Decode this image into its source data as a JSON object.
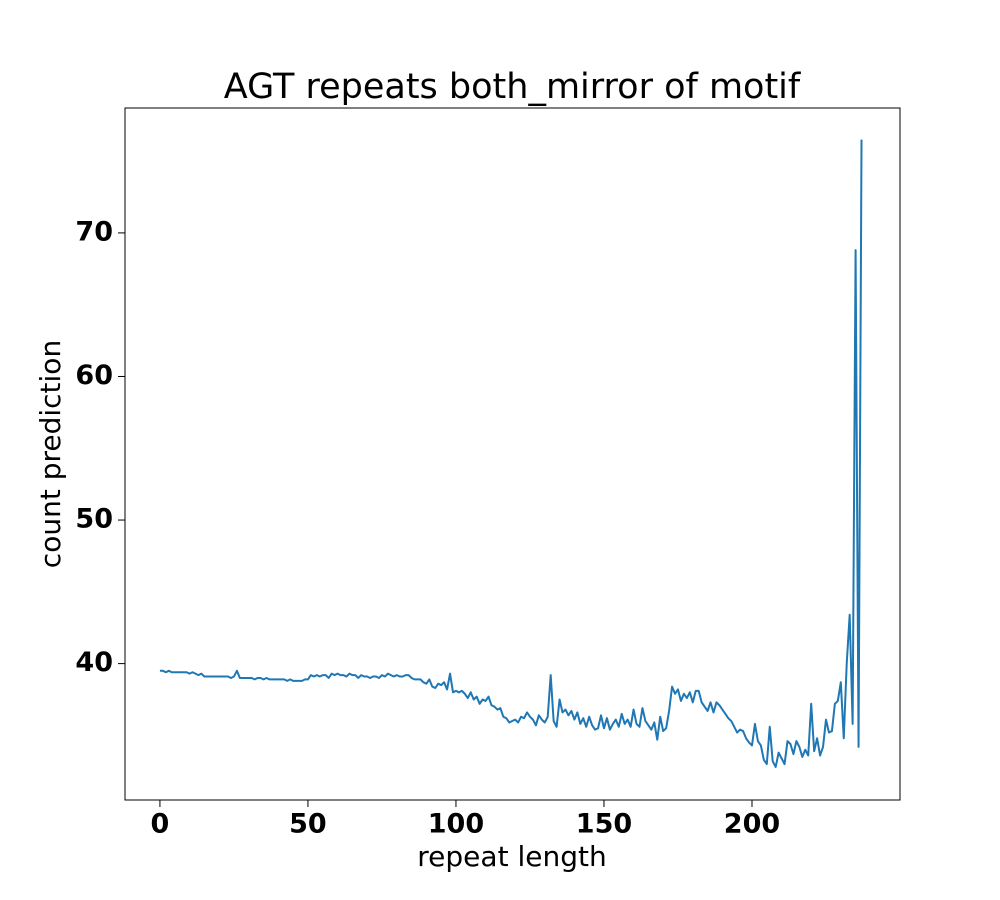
{
  "chart_data": {
    "type": "line",
    "title": "AGT repeats both_mirror of motif",
    "xlabel": "repeat length",
    "ylabel": "count prediction",
    "x": [
      0,
      1,
      2,
      3,
      4,
      5,
      6,
      7,
      8,
      9,
      10,
      11,
      12,
      13,
      14,
      15,
      16,
      17,
      18,
      19,
      20,
      21,
      22,
      23,
      24,
      25,
      26,
      27,
      28,
      29,
      30,
      31,
      32,
      33,
      34,
      35,
      36,
      37,
      38,
      39,
      40,
      41,
      42,
      43,
      44,
      45,
      46,
      47,
      48,
      49,
      50,
      51,
      52,
      53,
      54,
      55,
      56,
      57,
      58,
      59,
      60,
      61,
      62,
      63,
      64,
      65,
      66,
      67,
      68,
      69,
      70,
      71,
      72,
      73,
      74,
      75,
      76,
      77,
      78,
      79,
      80,
      81,
      82,
      83,
      84,
      85,
      86,
      87,
      88,
      89,
      90,
      91,
      92,
      93,
      94,
      95,
      96,
      97,
      98,
      99,
      100,
      101,
      102,
      103,
      104,
      105,
      106,
      107,
      108,
      109,
      110,
      111,
      112,
      113,
      114,
      115,
      116,
      117,
      118,
      119,
      120,
      121,
      122,
      123,
      124,
      125,
      126,
      127,
      128,
      129,
      130,
      131,
      132,
      133,
      134,
      135,
      136,
      137,
      138,
      139,
      140,
      141,
      142,
      143,
      144,
      145,
      146,
      147,
      148,
      149,
      150,
      151,
      152,
      153,
      154,
      155,
      156,
      157,
      158,
      159,
      160,
      161,
      162,
      163,
      164,
      165,
      166,
      167,
      168,
      169,
      170,
      171,
      172,
      173,
      174,
      175,
      176,
      177,
      178,
      179,
      180,
      181,
      182,
      183,
      184,
      185,
      186,
      187,
      188,
      189,
      190,
      191,
      192,
      193,
      194,
      195,
      196,
      197,
      198,
      199,
      200,
      201,
      202,
      203,
      204,
      205,
      206,
      207,
      208,
      209,
      210,
      211,
      212,
      213,
      214,
      215,
      216,
      217,
      218,
      219,
      220,
      221,
      222,
      223,
      224,
      225,
      226,
      227,
      228,
      229,
      230,
      231,
      232,
      233,
      234,
      235,
      236,
      237
    ],
    "series": [
      {
        "name": "count prediction",
        "color": "#1f77b4",
        "values": [
          39.5,
          39.5,
          39.4,
          39.5,
          39.4,
          39.4,
          39.4,
          39.4,
          39.4,
          39.4,
          39.3,
          39.4,
          39.3,
          39.2,
          39.3,
          39.1,
          39.1,
          39.1,
          39.1,
          39.1,
          39.1,
          39.1,
          39.1,
          39.1,
          39.0,
          39.1,
          39.5,
          39.0,
          39.0,
          39.0,
          39.0,
          39.0,
          38.9,
          39.0,
          39.0,
          38.9,
          39.0,
          38.9,
          38.9,
          38.9,
          38.9,
          38.9,
          38.9,
          38.8,
          38.9,
          38.8,
          38.8,
          38.8,
          38.8,
          38.9,
          38.9,
          39.2,
          39.1,
          39.2,
          39.1,
          39.2,
          39.2,
          39.0,
          39.3,
          39.2,
          39.3,
          39.2,
          39.2,
          39.1,
          39.3,
          39.2,
          39.2,
          39.0,
          39.2,
          39.1,
          39.1,
          39.0,
          39.1,
          39.1,
          39.0,
          39.2,
          39.1,
          39.3,
          39.2,
          39.1,
          39.2,
          39.1,
          39.1,
          39.2,
          39.2,
          39.0,
          38.9,
          38.9,
          38.9,
          38.7,
          38.6,
          38.9,
          38.4,
          38.3,
          38.6,
          38.5,
          38.7,
          38.2,
          39.3,
          38.0,
          38.1,
          38.0,
          38.1,
          37.9,
          37.6,
          38.0,
          37.5,
          37.7,
          37.2,
          37.5,
          37.4,
          37.7,
          37.1,
          37.0,
          36.8,
          36.9,
          36.3,
          36.2,
          35.9,
          36.0,
          36.1,
          35.9,
          36.3,
          36.2,
          36.6,
          36.3,
          36.1,
          35.7,
          36.4,
          36.1,
          35.9,
          36.3,
          39.2,
          36.0,
          35.6,
          37.5,
          36.6,
          36.8,
          36.4,
          36.7,
          36.1,
          36.6,
          35.8,
          36.2,
          35.6,
          36.3,
          35.7,
          35.4,
          35.5,
          36.4,
          35.5,
          36.2,
          35.4,
          35.8,
          36.1,
          35.6,
          36.5,
          35.8,
          36.1,
          35.6,
          36.8,
          35.8,
          35.6,
          36.9,
          36.0,
          35.7,
          35.4,
          35.9,
          34.7,
          36.3,
          35.3,
          35.5,
          36.7,
          38.4,
          37.9,
          38.2,
          37.4,
          37.9,
          37.6,
          38.0,
          37.3,
          38.1,
          38.1,
          37.3,
          37.0,
          36.7,
          37.3,
          36.6,
          37.3,
          37.1,
          36.8,
          36.5,
          36.2,
          36.0,
          35.6,
          35.2,
          35.4,
          35.3,
          34.8,
          34.5,
          34.3,
          35.8,
          34.6,
          34.3,
          33.3,
          33.0,
          35.6,
          33.2,
          32.8,
          33.8,
          33.4,
          33.0,
          34.6,
          34.4,
          33.7,
          34.6,
          34.2,
          33.5,
          34.0,
          33.6,
          37.2,
          33.9,
          34.8,
          33.6,
          34.2,
          36.1,
          35.2,
          35.3,
          37.2,
          37.4,
          38.7,
          34.8,
          40.0,
          43.4,
          35.8,
          68.8,
          34.2,
          76.5
        ]
      }
    ],
    "xlim": [
      -11.8,
      250
    ],
    "ylim": [
      30.5,
      78.7
    ],
    "xticks": [
      0,
      50,
      100,
      150,
      200
    ],
    "yticks": [
      40,
      50,
      60,
      70
    ]
  }
}
